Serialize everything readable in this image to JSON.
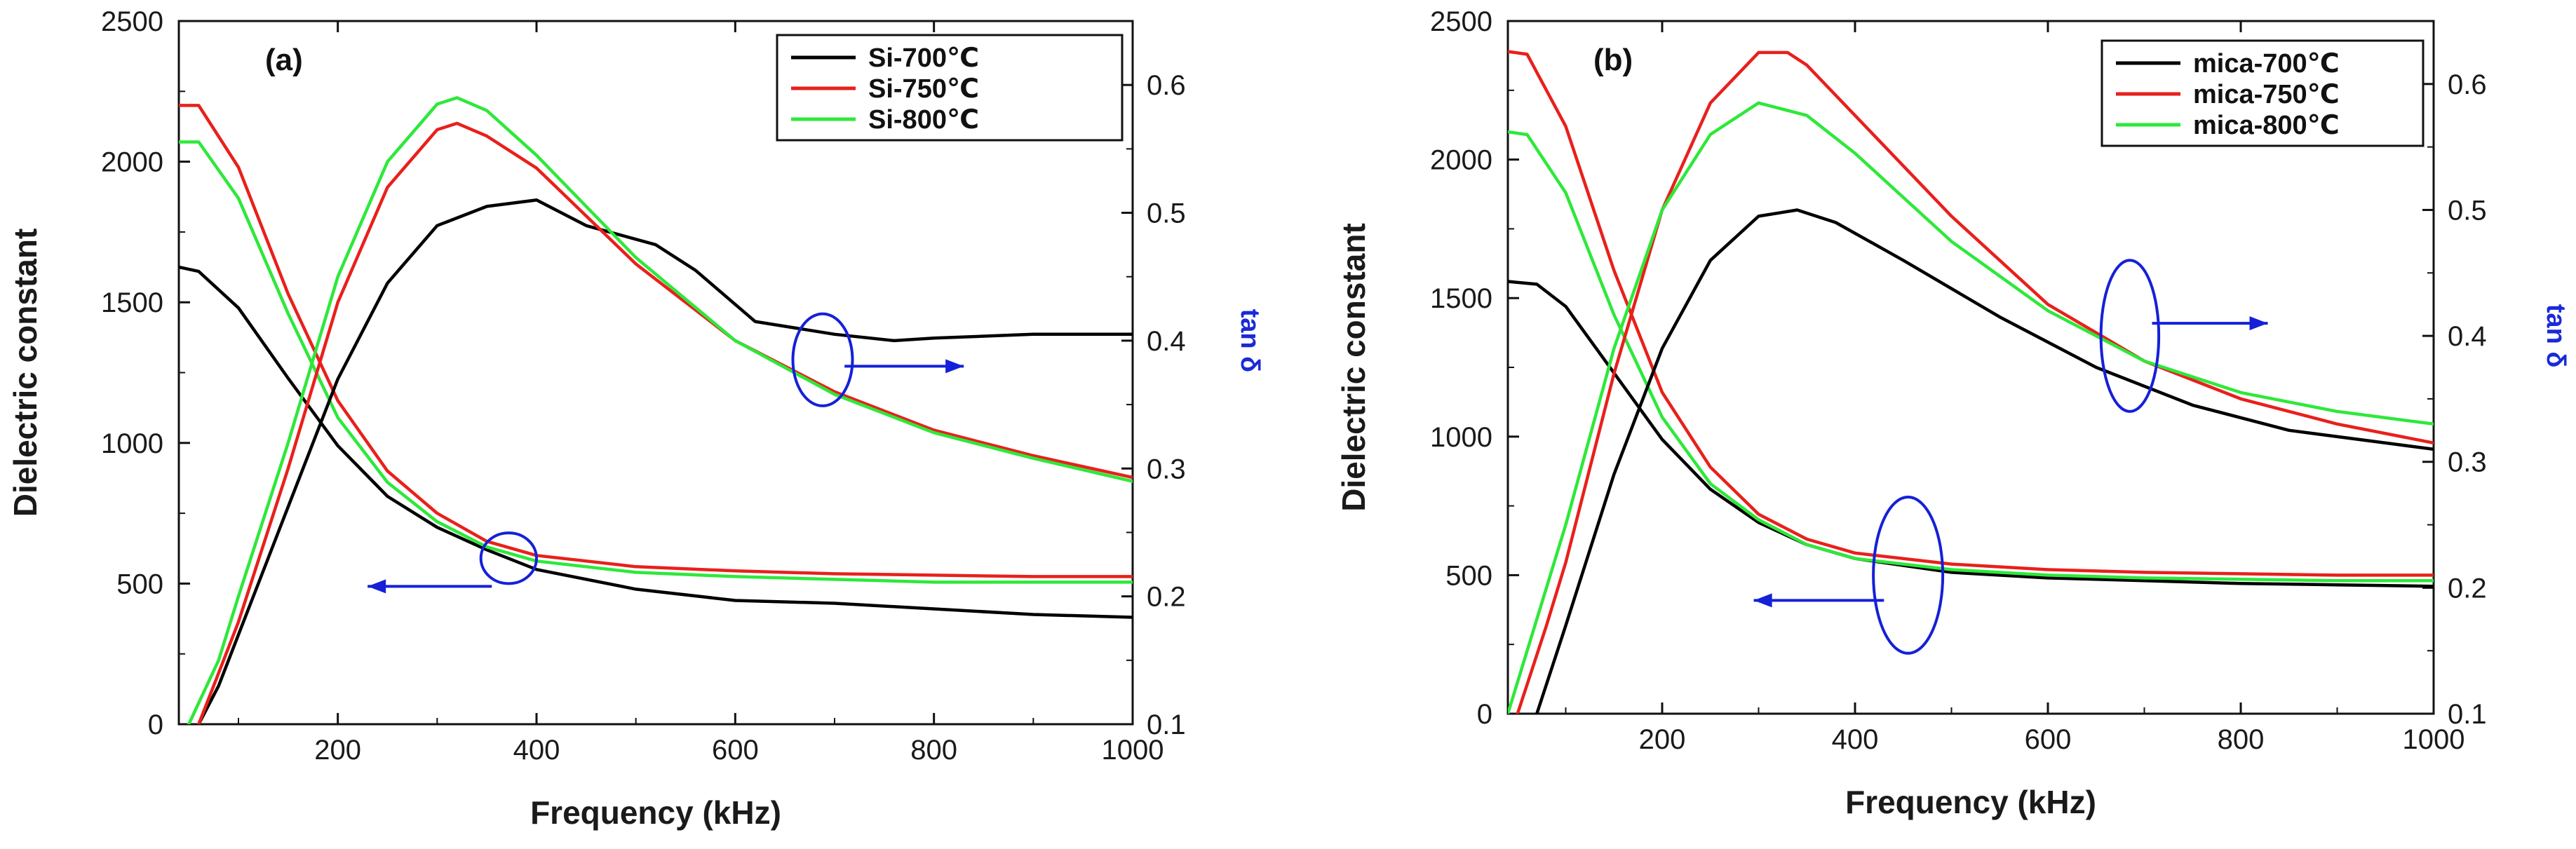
{
  "figure": {
    "background": "#ffffff"
  },
  "chart_data": [
    {
      "panel": "(a)",
      "type": "line",
      "xlabel": "Frequency (kHz)",
      "ylabel": "Dielectric constant",
      "y2label": "tan δ",
      "xlim": [
        40,
        1000
      ],
      "ylim": [
        0,
        2500
      ],
      "y2lim": [
        0.1,
        0.65
      ],
      "xticks": [
        200,
        400,
        600,
        800,
        1000
      ],
      "yticks": [
        0,
        500,
        1000,
        1500,
        2000,
        2500
      ],
      "y2ticks": [
        0.1,
        0.2,
        0.3,
        0.4,
        0.5,
        0.6
      ],
      "legend": {
        "position": "top-right",
        "entries": [
          "Si-700℃",
          "Si-750℃",
          "Si-800℃"
        ]
      },
      "series": [
        {
          "name": "Si-700℃",
          "axis": "left",
          "color": "#000000",
          "x": [
            40,
            60,
            100,
            150,
            200,
            250,
            300,
            350,
            400,
            500,
            600,
            700,
            800,
            900,
            1000
          ],
          "y": [
            1625,
            1610,
            1480,
            1230,
            990,
            810,
            700,
            620,
            550,
            480,
            440,
            430,
            410,
            390,
            380
          ]
        },
        {
          "name": "Si-750℃",
          "axis": "left",
          "color": "#e8201c",
          "x": [
            40,
            60,
            100,
            150,
            200,
            250,
            300,
            350,
            400,
            500,
            600,
            700,
            800,
            900,
            1000
          ],
          "y": [
            2200,
            2200,
            1980,
            1530,
            1150,
            900,
            750,
            650,
            600,
            560,
            545,
            535,
            530,
            525,
            525
          ]
        },
        {
          "name": "Si-800℃",
          "axis": "left",
          "color": "#2ee83a",
          "x": [
            40,
            60,
            100,
            150,
            200,
            250,
            300,
            350,
            400,
            500,
            600,
            700,
            800,
            900,
            1000
          ],
          "y": [
            2070,
            2070,
            1870,
            1460,
            1090,
            860,
            720,
            630,
            580,
            540,
            525,
            515,
            505,
            505,
            505
          ]
        },
        {
          "name": "Si-700℃",
          "axis": "right",
          "color": "#000000",
          "x": [
            60,
            80,
            100,
            150,
            200,
            250,
            300,
            350,
            400,
            450,
            520,
            560,
            620,
            700,
            760,
            800,
            900,
            1000
          ],
          "y": [
            0.1,
            0.13,
            0.17,
            0.27,
            0.37,
            0.445,
            0.49,
            0.505,
            0.51,
            0.49,
            0.475,
            0.455,
            0.415,
            0.405,
            0.4,
            0.402,
            0.405,
            0.405
          ]
        },
        {
          "name": "Si-750℃",
          "axis": "right",
          "color": "#e8201c",
          "x": [
            60,
            80,
            100,
            150,
            200,
            250,
            300,
            320,
            350,
            400,
            500,
            600,
            700,
            800,
            900,
            1000
          ],
          "y": [
            0.1,
            0.14,
            0.18,
            0.3,
            0.43,
            0.52,
            0.565,
            0.57,
            0.56,
            0.535,
            0.46,
            0.4,
            0.36,
            0.33,
            0.31,
            0.293
          ]
        },
        {
          "name": "Si-800℃",
          "axis": "right",
          "color": "#2ee83a",
          "x": [
            50,
            80,
            100,
            150,
            200,
            250,
            300,
            320,
            350,
            400,
            500,
            600,
            700,
            800,
            900,
            1000
          ],
          "y": [
            0.1,
            0.15,
            0.2,
            0.32,
            0.45,
            0.54,
            0.585,
            0.59,
            0.58,
            0.545,
            0.465,
            0.4,
            0.358,
            0.328,
            0.308,
            0.29
          ]
        }
      ],
      "annotations": [
        {
          "type": "ellipse",
          "cx": 372,
          "cy": 590,
          "rx": 28,
          "ry": 90,
          "axis": "left",
          "color": "#1520d8"
        },
        {
          "type": "arrow",
          "from": [
            355,
            490
          ],
          "to": [
            230,
            490
          ],
          "axis": "left",
          "color": "#1520d8"
        },
        {
          "type": "ellipse",
          "cx": 688,
          "cy": 0.385,
          "rx": 30,
          "ry": 0.036,
          "axis": "right",
          "color": "#1520d8"
        },
        {
          "type": "arrow",
          "from": [
            710,
            0.38
          ],
          "to": [
            830,
            0.38
          ],
          "axis": "right",
          "color": "#1520d8"
        }
      ]
    },
    {
      "panel": "(b)",
      "type": "line",
      "xlabel": "Frequency (kHz)",
      "ylabel": "Dielectric constant",
      "y2label": "tan δ",
      "xlim": [
        40,
        1000
      ],
      "ylim": [
        0,
        2500
      ],
      "y2lim": [
        0.1,
        0.65
      ],
      "xticks": [
        200,
        400,
        600,
        800,
        1000
      ],
      "yticks": [
        0,
        500,
        1000,
        1500,
        2000,
        2500
      ],
      "y2ticks": [
        0.1,
        0.2,
        0.3,
        0.4,
        0.5,
        0.6
      ],
      "legend": {
        "position": "top-right",
        "entries": [
          "mica-700℃",
          "mica-750℃",
          "mica-800℃"
        ]
      },
      "series": [
        {
          "name": "mica-700℃",
          "axis": "left",
          "color": "#000000",
          "x": [
            40,
            70,
            100,
            150,
            200,
            250,
            300,
            350,
            400,
            500,
            600,
            700,
            800,
            900,
            1000
          ],
          "y": [
            1560,
            1550,
            1470,
            1230,
            990,
            810,
            690,
            610,
            560,
            510,
            490,
            480,
            470,
            465,
            460
          ]
        },
        {
          "name": "mica-750℃",
          "axis": "left",
          "color": "#e8201c",
          "x": [
            40,
            60,
            100,
            150,
            200,
            250,
            300,
            350,
            400,
            500,
            600,
            700,
            800,
            900,
            1000
          ],
          "y": [
            2390,
            2380,
            2120,
            1600,
            1160,
            890,
            720,
            630,
            580,
            540,
            520,
            510,
            505,
            500,
            500
          ]
        },
        {
          "name": "mica-800℃",
          "axis": "left",
          "color": "#2ee83a",
          "x": [
            40,
            60,
            100,
            150,
            200,
            250,
            300,
            350,
            400,
            500,
            600,
            700,
            800,
            900,
            1000
          ],
          "y": [
            2100,
            2090,
            1880,
            1440,
            1070,
            830,
            700,
            610,
            560,
            520,
            500,
            490,
            485,
            480,
            480
          ]
        },
        {
          "name": "mica-700℃",
          "axis": "right",
          "color": "#000000",
          "x": [
            70,
            100,
            150,
            200,
            250,
            300,
            340,
            380,
            450,
            550,
            650,
            750,
            850,
            1000
          ],
          "y": [
            0.1,
            0.17,
            0.29,
            0.39,
            0.46,
            0.495,
            0.5,
            0.49,
            0.46,
            0.415,
            0.375,
            0.345,
            0.325,
            0.31
          ]
        },
        {
          "name": "mica-750℃",
          "axis": "right",
          "color": "#e8201c",
          "x": [
            50,
            80,
            100,
            150,
            200,
            250,
            300,
            330,
            350,
            400,
            500,
            600,
            700,
            800,
            900,
            1000
          ],
          "y": [
            0.1,
            0.17,
            0.22,
            0.37,
            0.5,
            0.585,
            0.625,
            0.625,
            0.615,
            0.575,
            0.495,
            0.425,
            0.38,
            0.35,
            0.33,
            0.315
          ]
        },
        {
          "name": "mica-800℃",
          "axis": "right",
          "color": "#2ee83a",
          "x": [
            40,
            80,
            100,
            150,
            200,
            250,
            300,
            350,
            400,
            500,
            600,
            700,
            800,
            900,
            1000
          ],
          "y": [
            0.1,
            0.2,
            0.25,
            0.39,
            0.5,
            0.56,
            0.585,
            0.575,
            0.545,
            0.475,
            0.42,
            0.38,
            0.355,
            0.34,
            0.33
          ]
        }
      ],
      "annotations": [
        {
          "type": "ellipse",
          "cx": 455,
          "cy": 0.21,
          "rx": 36,
          "ry": 0.062,
          "axis": "right",
          "color": "#1520d8"
        },
        {
          "type": "arrow",
          "from": [
            430,
            0.19
          ],
          "to": [
            295,
            0.19
          ],
          "axis": "right",
          "color": "#1520d8"
        },
        {
          "type": "ellipse",
          "cx": 685,
          "cy": 0.4,
          "rx": 30,
          "ry": 0.06,
          "axis": "right",
          "color": "#1520d8"
        },
        {
          "type": "arrow",
          "from": [
            708,
            0.41
          ],
          "to": [
            828,
            0.41
          ],
          "axis": "right",
          "color": "#1520d8"
        }
      ]
    }
  ]
}
